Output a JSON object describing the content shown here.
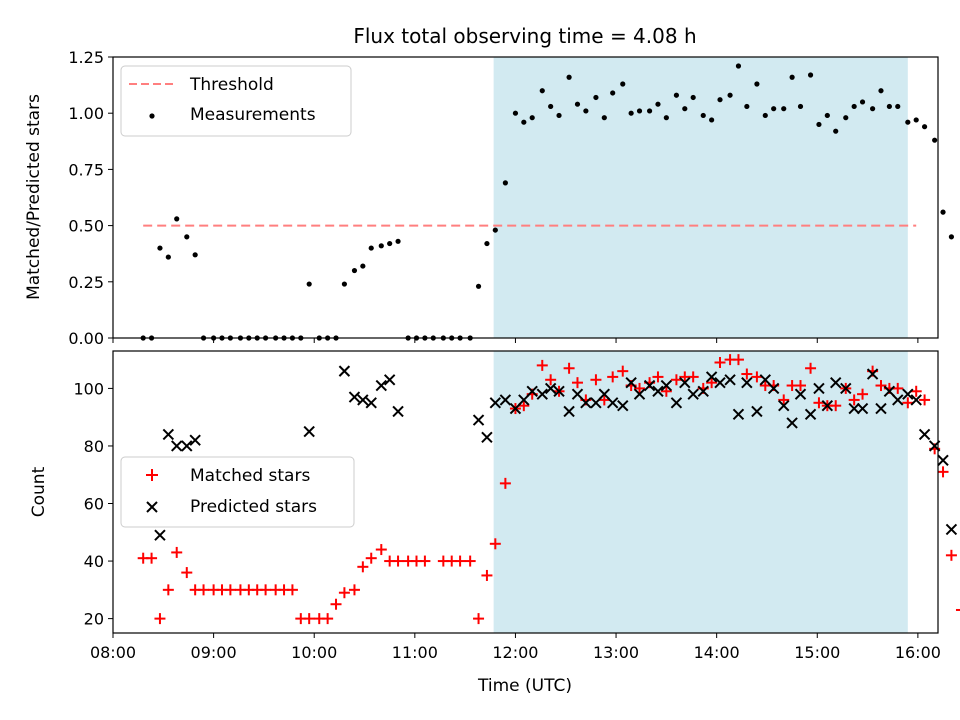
{
  "chart_data": [
    {
      "type": "scatter",
      "panel": "top",
      "title": "Flux total observing time = 4.08 h",
      "xlabel": "",
      "ylabel": "Matched/Predicted stars",
      "x_unit": "hours UTC",
      "xlim": [
        "08:00",
        "16:12"
      ],
      "ylim": [
        0,
        1.25
      ],
      "yticks": [
        "0.00",
        "0.25",
        "0.50",
        "0.75",
        "1.00",
        "1.25"
      ],
      "grid": false,
      "legend": "upper-left",
      "shaded_region": {
        "from": "11:47",
        "to": "15:54",
        "color": "#add8e6"
      },
      "threshold": {
        "name": "Threshold",
        "value": 0.5,
        "from": "08:18",
        "to": "15:59",
        "color": "#ff7f7f",
        "style": "dashed"
      },
      "series": [
        {
          "name": "Measurements",
          "marker": "dot",
          "color": "#000000",
          "points": [
            [
              "08:18",
              0.0
            ],
            [
              "08:23",
              0.0
            ],
            [
              "08:28",
              0.4
            ],
            [
              "08:33",
              0.36
            ],
            [
              "08:38",
              0.53
            ],
            [
              "08:44",
              0.45
            ],
            [
              "08:49",
              0.37
            ],
            [
              "08:54",
              0.0
            ],
            [
              "09:00",
              0.0
            ],
            [
              "09:05",
              0.0
            ],
            [
              "09:10",
              0.0
            ],
            [
              "09:16",
              0.0
            ],
            [
              "09:21",
              0.0
            ],
            [
              "09:26",
              0.0
            ],
            [
              "09:31",
              0.0
            ],
            [
              "09:37",
              0.0
            ],
            [
              "09:42",
              0.0
            ],
            [
              "09:47",
              0.0
            ],
            [
              "09:52",
              0.0
            ],
            [
              "09:57",
              0.24
            ],
            [
              "10:03",
              0.0
            ],
            [
              "10:08",
              0.0
            ],
            [
              "10:13",
              0.0
            ],
            [
              "10:18",
              0.24
            ],
            [
              "10:24",
              0.3
            ],
            [
              "10:29",
              0.32
            ],
            [
              "10:34",
              0.4
            ],
            [
              "10:40",
              0.41
            ],
            [
              "10:45",
              0.42
            ],
            [
              "10:50",
              0.43
            ],
            [
              "10:56",
              0.0
            ],
            [
              "11:01",
              0.0
            ],
            [
              "11:06",
              0.0
            ],
            [
              "11:11",
              0.0
            ],
            [
              "11:17",
              0.0
            ],
            [
              "11:22",
              0.0
            ],
            [
              "11:27",
              0.0
            ],
            [
              "11:33",
              0.0
            ],
            [
              "11:38",
              0.23
            ],
            [
              "11:43",
              0.42
            ],
            [
              "11:48",
              0.48
            ],
            [
              "11:54",
              0.69
            ],
            [
              "12:00",
              1.0
            ],
            [
              "12:05",
              0.96
            ],
            [
              "12:10",
              0.98
            ],
            [
              "12:16",
              1.1
            ],
            [
              "12:21",
              1.03
            ],
            [
              "12:26",
              0.99
            ],
            [
              "12:32",
              1.16
            ],
            [
              "12:37",
              1.04
            ],
            [
              "12:42",
              1.01
            ],
            [
              "12:48",
              1.07
            ],
            [
              "12:53",
              0.98
            ],
            [
              "12:58",
              1.09
            ],
            [
              "13:04",
              1.13
            ],
            [
              "13:09",
              1.0
            ],
            [
              "13:14",
              1.01
            ],
            [
              "13:20",
              1.01
            ],
            [
              "13:25",
              1.04
            ],
            [
              "13:30",
              0.98
            ],
            [
              "13:36",
              1.08
            ],
            [
              "13:41",
              1.02
            ],
            [
              "13:46",
              1.07
            ],
            [
              "13:52",
              0.99
            ],
            [
              "13:57",
              0.97
            ],
            [
              "14:02",
              1.06
            ],
            [
              "14:08",
              1.08
            ],
            [
              "14:13",
              1.21
            ],
            [
              "14:18",
              1.03
            ],
            [
              "14:24",
              1.13
            ],
            [
              "14:29",
              0.99
            ],
            [
              "14:34",
              1.02
            ],
            [
              "14:40",
              1.02
            ],
            [
              "14:45",
              1.16
            ],
            [
              "14:50",
              1.03
            ],
            [
              "14:56",
              1.17
            ],
            [
              "15:01",
              0.95
            ],
            [
              "15:06",
              0.99
            ],
            [
              "15:11",
              0.92
            ],
            [
              "15:17",
              0.98
            ],
            [
              "15:22",
              1.03
            ],
            [
              "15:27",
              1.05
            ],
            [
              "15:33",
              1.02
            ],
            [
              "15:38",
              1.1
            ],
            [
              "15:43",
              1.03
            ],
            [
              "15:48",
              1.03
            ],
            [
              "15:54",
              0.96
            ],
            [
              "15:59",
              0.97
            ],
            [
              "16:04",
              0.94
            ],
            [
              "16:10",
              0.88
            ],
            [
              "16:15",
              0.56
            ],
            [
              "16:20",
              0.45
            ]
          ]
        }
      ]
    },
    {
      "type": "scatter",
      "panel": "bottom",
      "title": "",
      "xlabel": "Time (UTC)",
      "ylabel": "Count",
      "x_unit": "hours UTC",
      "xlim": [
        "08:00",
        "16:12"
      ],
      "ylim": [
        15,
        113
      ],
      "xticks": [
        "08:00",
        "09:00",
        "10:00",
        "11:00",
        "12:00",
        "13:00",
        "14:00",
        "15:00",
        "16:00"
      ],
      "yticks": [
        "20",
        "40",
        "60",
        "80",
        "100"
      ],
      "grid": false,
      "legend": "center-left",
      "shaded_region": {
        "from": "11:47",
        "to": "15:54",
        "color": "#add8e6"
      },
      "series": [
        {
          "name": "Matched stars",
          "marker": "plus",
          "color": "#ff0000",
          "points": [
            [
              "08:18",
              41
            ],
            [
              "08:23",
              41
            ],
            [
              "08:28",
              20
            ],
            [
              "08:33",
              30
            ],
            [
              "08:38",
              43
            ],
            [
              "08:44",
              36
            ],
            [
              "08:49",
              30
            ],
            [
              "08:54",
              30
            ],
            [
              "09:00",
              30
            ],
            [
              "09:05",
              30
            ],
            [
              "09:10",
              30
            ],
            [
              "09:16",
              30
            ],
            [
              "09:21",
              30
            ],
            [
              "09:26",
              30
            ],
            [
              "09:31",
              30
            ],
            [
              "09:37",
              30
            ],
            [
              "09:42",
              30
            ],
            [
              "09:47",
              30
            ],
            [
              "09:52",
              20
            ],
            [
              "09:57",
              20
            ],
            [
              "10:03",
              20
            ],
            [
              "10:08",
              20
            ],
            [
              "10:13",
              25
            ],
            [
              "10:18",
              29
            ],
            [
              "10:24",
              30
            ],
            [
              "10:29",
              38
            ],
            [
              "10:34",
              41
            ],
            [
              "10:40",
              44
            ],
            [
              "10:45",
              40
            ],
            [
              "10:50",
              40
            ],
            [
              "10:56",
              40
            ],
            [
              "11:01",
              40
            ],
            [
              "11:06",
              40
            ],
            [
              "11:17",
              40
            ],
            [
              "11:22",
              40
            ],
            [
              "11:27",
              40
            ],
            [
              "11:33",
              40
            ],
            [
              "11:38",
              20
            ],
            [
              "11:43",
              35
            ],
            [
              "11:48",
              46
            ],
            [
              "11:54",
              67
            ],
            [
              "12:00",
              93
            ],
            [
              "12:05",
              94
            ],
            [
              "12:10",
              98
            ],
            [
              "12:16",
              108
            ],
            [
              "12:21",
              103
            ],
            [
              "12:26",
              99
            ],
            [
              "12:32",
              107
            ],
            [
              "12:37",
              102
            ],
            [
              "12:42",
              96
            ],
            [
              "12:48",
              103
            ],
            [
              "12:53",
              96
            ],
            [
              "12:58",
              104
            ],
            [
              "13:04",
              106
            ],
            [
              "13:09",
              101
            ],
            [
              "13:14",
              100
            ],
            [
              "13:20",
              102
            ],
            [
              "13:25",
              104
            ],
            [
              "13:30",
              99
            ],
            [
              "13:36",
              103
            ],
            [
              "13:41",
              104
            ],
            [
              "13:46",
              104
            ],
            [
              "13:52",
              100
            ],
            [
              "13:57",
              102
            ],
            [
              "14:02",
              109
            ],
            [
              "14:08",
              110
            ],
            [
              "14:13",
              110
            ],
            [
              "14:18",
              105
            ],
            [
              "14:24",
              104
            ],
            [
              "14:29",
              101
            ],
            [
              "14:34",
              101
            ],
            [
              "14:40",
              96
            ],
            [
              "14:45",
              101
            ],
            [
              "14:50",
              101
            ],
            [
              "14:56",
              107
            ],
            [
              "15:01",
              95
            ],
            [
              "15:06",
              94
            ],
            [
              "15:11",
              94
            ],
            [
              "15:17",
              100
            ],
            [
              "15:22",
              96
            ],
            [
              "15:27",
              98
            ],
            [
              "15:33",
              106
            ],
            [
              "15:38",
              101
            ],
            [
              "15:43",
              100
            ],
            [
              "15:48",
              100
            ],
            [
              "15:54",
              95
            ],
            [
              "15:59",
              99
            ],
            [
              "16:04",
              96
            ],
            [
              "16:10",
              79
            ],
            [
              "16:15",
              71
            ],
            [
              "16:20",
              42
            ],
            [
              "16:26",
              23
            ]
          ]
        },
        {
          "name": "Predicted stars",
          "marker": "x",
          "color": "#000000",
          "points": [
            [
              "08:28",
              49
            ],
            [
              "08:33",
              84
            ],
            [
              "08:38",
              80
            ],
            [
              "08:44",
              80
            ],
            [
              "08:49",
              82
            ],
            [
              "09:57",
              85
            ],
            [
              "10:18",
              106
            ],
            [
              "10:24",
              97
            ],
            [
              "10:29",
              96
            ],
            [
              "10:34",
              95
            ],
            [
              "10:40",
              101
            ],
            [
              "10:45",
              103
            ],
            [
              "10:50",
              92
            ],
            [
              "11:38",
              89
            ],
            [
              "11:43",
              83
            ],
            [
              "11:48",
              95
            ],
            [
              "11:54",
              96
            ],
            [
              "12:00",
              93
            ],
            [
              "12:05",
              96
            ],
            [
              "12:10",
              99
            ],
            [
              "12:16",
              98
            ],
            [
              "12:21",
              100
            ],
            [
              "12:26",
              99
            ],
            [
              "12:32",
              92
            ],
            [
              "12:37",
              98
            ],
            [
              "12:42",
              95
            ],
            [
              "12:48",
              95
            ],
            [
              "12:53",
              98
            ],
            [
              "12:58",
              95
            ],
            [
              "13:04",
              94
            ],
            [
              "13:09",
              102
            ],
            [
              "13:14",
              98
            ],
            [
              "13:20",
              101
            ],
            [
              "13:25",
              99
            ],
            [
              "13:30",
              101
            ],
            [
              "13:36",
              95
            ],
            [
              "13:41",
              102
            ],
            [
              "13:46",
              98
            ],
            [
              "13:52",
              99
            ],
            [
              "13:57",
              104
            ],
            [
              "14:02",
              102
            ],
            [
              "14:08",
              103
            ],
            [
              "14:13",
              91
            ],
            [
              "14:18",
              102
            ],
            [
              "14:24",
              92
            ],
            [
              "14:29",
              103
            ],
            [
              "14:34",
              100
            ],
            [
              "14:40",
              94
            ],
            [
              "14:45",
              88
            ],
            [
              "14:50",
              98
            ],
            [
              "14:56",
              91
            ],
            [
              "15:01",
              100
            ],
            [
              "15:06",
              94
            ],
            [
              "15:11",
              102
            ],
            [
              "15:17",
              100
            ],
            [
              "15:22",
              93
            ],
            [
              "15:27",
              93
            ],
            [
              "15:33",
              105
            ],
            [
              "15:38",
              93
            ],
            [
              "15:43",
              99
            ],
            [
              "15:48",
              96
            ],
            [
              "15:54",
              98
            ],
            [
              "15:59",
              96
            ],
            [
              "16:04",
              84
            ],
            [
              "16:10",
              80
            ],
            [
              "16:15",
              75
            ],
            [
              "16:20",
              51
            ]
          ]
        }
      ]
    }
  ]
}
